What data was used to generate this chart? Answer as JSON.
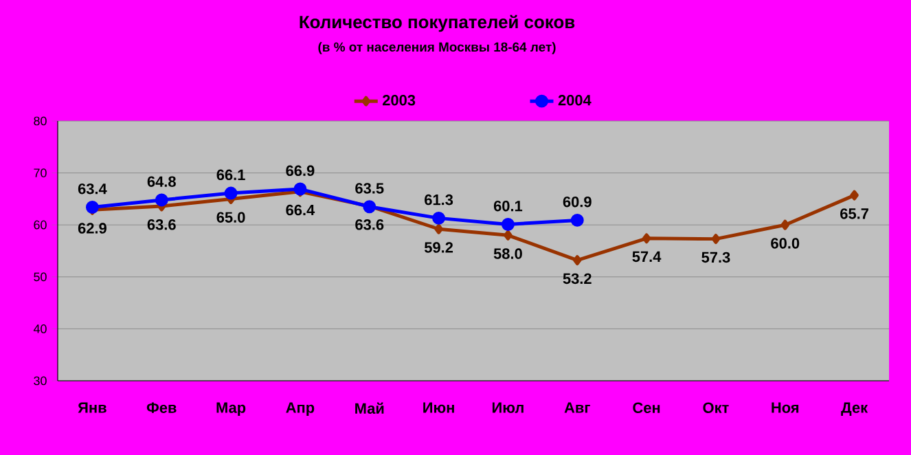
{
  "chart_data": {
    "type": "line",
    "title": "Количество покупателей соков",
    "subtitle": "(в % от населения Москвы 18-64 лет)",
    "categories": [
      "Янв",
      "Фев",
      "Мар",
      "Апр",
      "Май",
      "Июн",
      "Июл",
      "Авг",
      "Сен",
      "Окт",
      "Ноя",
      "Дек"
    ],
    "series": [
      {
        "name": "2003",
        "color": "#993300",
        "marker": "diamond",
        "values": [
          62.9,
          63.6,
          65.0,
          66.4,
          63.6,
          59.2,
          58.0,
          53.2,
          57.4,
          57.3,
          60.0,
          65.7
        ],
        "value_labels": [
          "62.9",
          "63.6",
          "65.0",
          "66.4",
          "63.6",
          "59.2",
          "58.0",
          "53.2",
          "57.4",
          "57.3",
          "60.0",
          "65.7"
        ]
      },
      {
        "name": "2004",
        "color": "#0000ff",
        "marker": "circle",
        "values": [
          63.4,
          64.8,
          66.1,
          66.9,
          63.5,
          61.3,
          60.1,
          60.9,
          null,
          null,
          null,
          null
        ],
        "value_labels": [
          "63.4",
          "64.8",
          "66.1",
          "66.9",
          "63.5",
          "61.3",
          "60.1",
          "60.9",
          null,
          null,
          null,
          null
        ]
      }
    ],
    "ylim": [
      30,
      80
    ],
    "yticks": [
      30,
      40,
      50,
      60,
      70,
      80
    ],
    "grid": "y",
    "legend": "top"
  }
}
